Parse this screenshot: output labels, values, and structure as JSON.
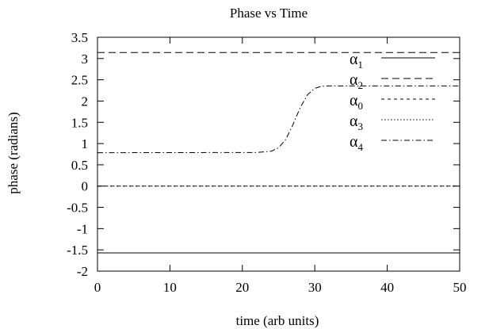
{
  "chart_data": {
    "type": "line",
    "title": "Phase vs Time",
    "xlabel": "time (arb units)",
    "ylabel": "phase (radians)",
    "xlim": [
      0,
      50
    ],
    "ylim": [
      -2,
      3.5
    ],
    "xticks": [
      0,
      10,
      20,
      30,
      40,
      50
    ],
    "xtick_labels": [
      "0",
      "10",
      "20",
      "30",
      "40",
      "50"
    ],
    "yticks": [
      -2,
      -1.5,
      -1,
      -0.5,
      0,
      0.5,
      1,
      1.5,
      2,
      2.5,
      3,
      3.5
    ],
    "ytick_labels": [
      "-2",
      "-1.5",
      "-1",
      "-0.5",
      "0",
      "0.5",
      "1",
      "1.5",
      "2",
      "2.5",
      "3",
      "3.5"
    ],
    "grid": false,
    "legend_position": "top-right",
    "series": [
      {
        "name": "α",
        "sub": "1",
        "dash": "solid",
        "x": [
          0,
          50
        ],
        "y": [
          -1.5708,
          -1.5708
        ]
      },
      {
        "name": "α",
        "sub": "2",
        "dash": "dashed",
        "x": [
          0,
          50
        ],
        "y": [
          3.1416,
          3.1416
        ]
      },
      {
        "name": "α",
        "sub": "0",
        "dash": "short-dashed",
        "x": [
          0,
          50
        ],
        "y": [
          0,
          0
        ]
      },
      {
        "name": "α",
        "sub": "3",
        "dash": "dotted",
        "x": [
          0,
          50
        ],
        "y": [
          0,
          0
        ]
      },
      {
        "name": "α",
        "sub": "4",
        "dash": "dash-dot",
        "x": [
          0,
          22,
          24,
          25,
          26,
          27,
          28,
          29,
          30,
          31,
          32,
          50
        ],
        "y": [
          0.785,
          0.79,
          0.82,
          0.9,
          1.1,
          1.45,
          1.85,
          2.15,
          2.3,
          2.35,
          2.356,
          2.356
        ]
      }
    ]
  }
}
